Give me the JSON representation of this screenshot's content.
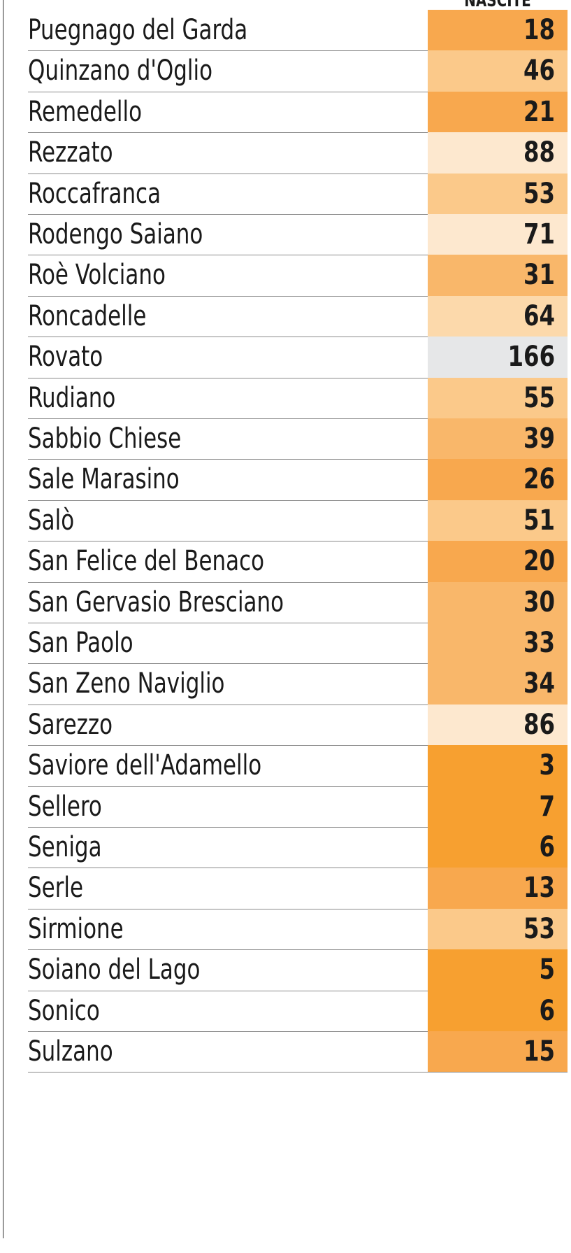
{
  "chart_data": {
    "type": "table",
    "columns": [
      "",
      "NASCITE"
    ],
    "rows": [
      {
        "name": "Puegnago del Garda",
        "value": "18",
        "color": "#f8a84e"
      },
      {
        "name": "Quinzano d'Oglio",
        "value": "46",
        "color": "#fbc98a"
      },
      {
        "name": "Remedello",
        "value": "21",
        "color": "#f8a84e"
      },
      {
        "name": "Rezzato",
        "value": "88",
        "color": "#fde8cf"
      },
      {
        "name": "Roccafranca",
        "value": "53",
        "color": "#fbc98a"
      },
      {
        "name": "Rodengo Saiano",
        "value": "71",
        "color": "#fde8cf"
      },
      {
        "name": "Roè Volciano",
        "value": "31",
        "color": "#f9b76a"
      },
      {
        "name": "Roncadelle",
        "value": "64",
        "color": "#fcd9ab"
      },
      {
        "name": "Rovato",
        "value": "166",
        "color": "#e6e7e8"
      },
      {
        "name": "Rudiano",
        "value": "55",
        "color": "#fbc98a"
      },
      {
        "name": "Sabbio Chiese",
        "value": "39",
        "color": "#f9b76a"
      },
      {
        "name": "Sale Marasino",
        "value": "26",
        "color": "#f8a84e"
      },
      {
        "name": "Salò",
        "value": "51",
        "color": "#fbc98a"
      },
      {
        "name": "San Felice del Benaco",
        "value": "20",
        "color": "#f8a84e"
      },
      {
        "name": "San Gervasio Bresciano",
        "value": "30",
        "color": "#f9b76a"
      },
      {
        "name": "San Paolo",
        "value": "33",
        "color": "#f9b76a"
      },
      {
        "name": "San Zeno Naviglio",
        "value": "34",
        "color": "#f9b76a"
      },
      {
        "name": "Sarezzo",
        "value": "86",
        "color": "#fde8cf"
      },
      {
        "name": "Saviore dell'Adamello",
        "value": "3",
        "color": "#f7a030"
      },
      {
        "name": "Sellero",
        "value": "7",
        "color": "#f7a030"
      },
      {
        "name": "Seniga",
        "value": "6",
        "color": "#f7a030"
      },
      {
        "name": "Serle",
        "value": "13",
        "color": "#f8a84e"
      },
      {
        "name": "Sirmione",
        "value": "53",
        "color": "#fbc98a"
      },
      {
        "name": "Soiano del Lago",
        "value": "5",
        "color": "#f7a030"
      },
      {
        "name": "Sonico",
        "value": "6",
        "color": "#f7a030"
      },
      {
        "name": "Sulzano",
        "value": "15",
        "color": "#f8a84e"
      }
    ]
  }
}
